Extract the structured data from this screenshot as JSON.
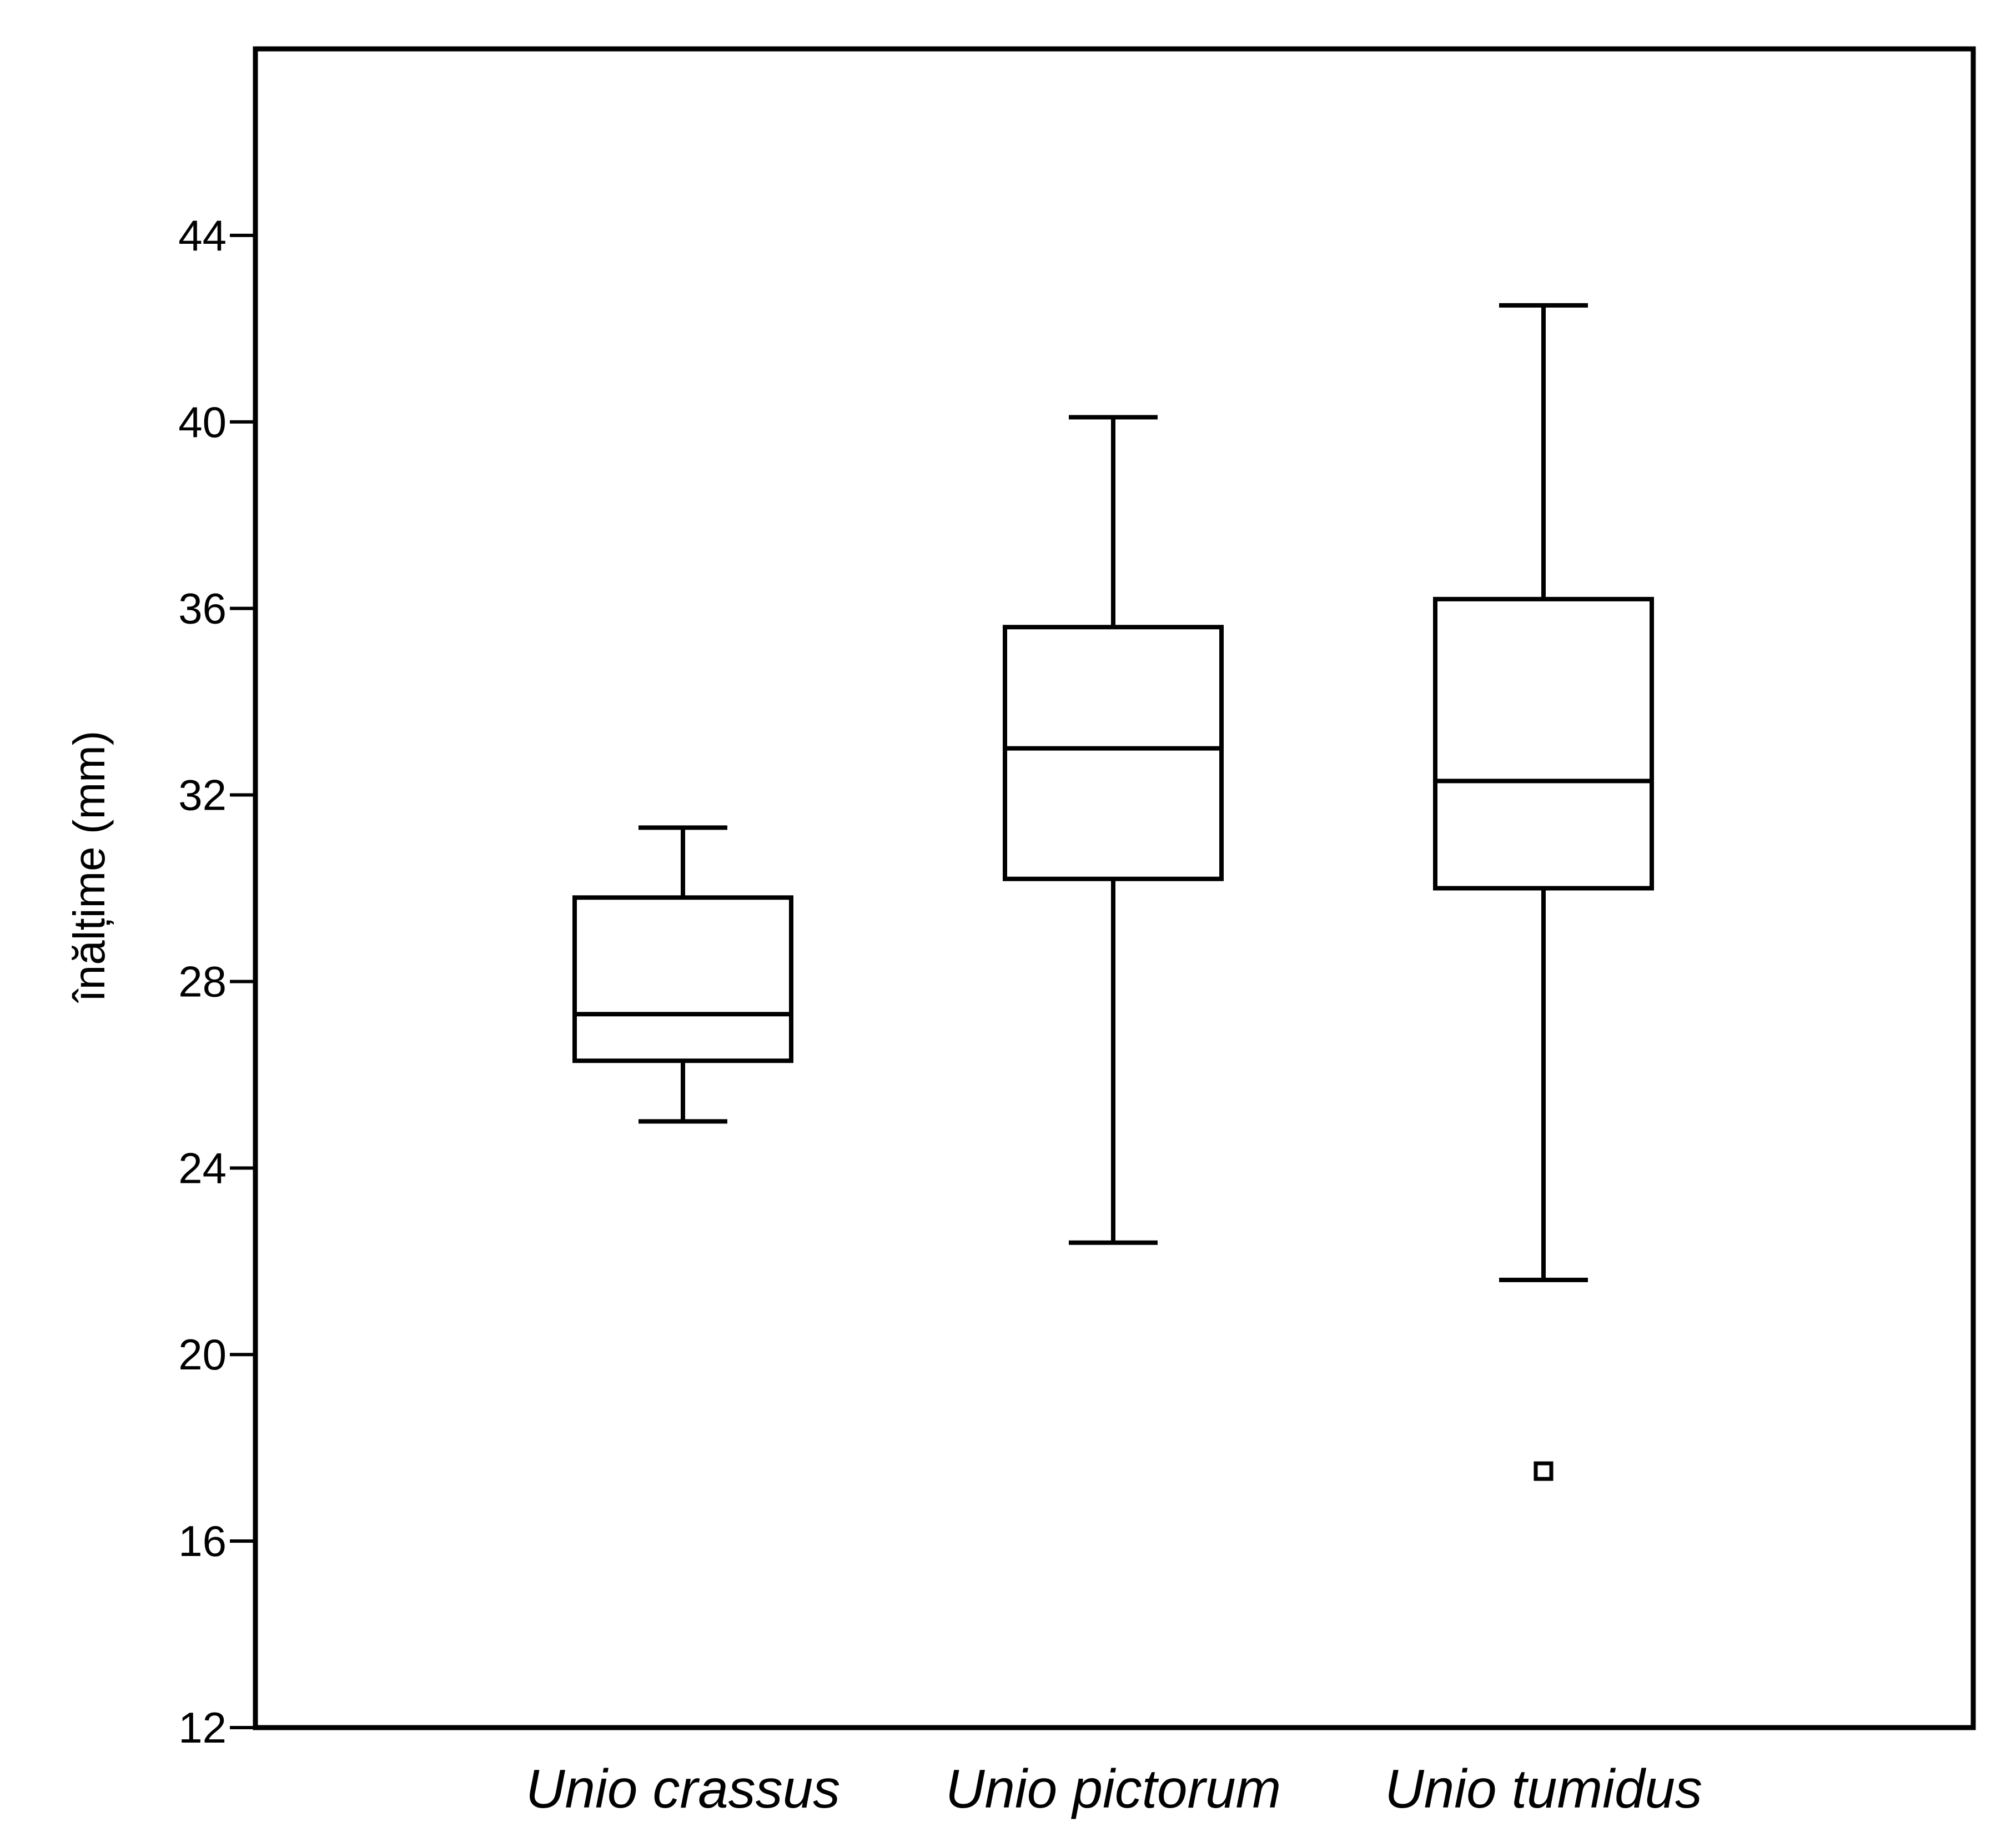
{
  "chart_data": {
    "type": "boxplot",
    "title": "",
    "xlabel": "",
    "ylabel": "înălțime (mm)",
    "ylim": [
      12,
      48
    ],
    "yticks": [
      12,
      16,
      20,
      24,
      28,
      32,
      36,
      40,
      44
    ],
    "ytick_labels": [
      "12",
      "16",
      "20",
      "24",
      "28",
      "32",
      "36",
      "40",
      "44"
    ],
    "categories": [
      "Unio crassus",
      "Unio pictorum",
      "Unio tumidus"
    ],
    "boxes": [
      {
        "category": "Unio crassus",
        "whisker_low": 25.0,
        "q1": 26.3,
        "median": 27.3,
        "q3": 29.8,
        "whisker_high": 31.3,
        "outliers": []
      },
      {
        "category": "Unio pictorum",
        "whisker_low": 22.4,
        "q1": 30.2,
        "median": 33.0,
        "q3": 35.6,
        "whisker_high": 40.1,
        "outliers": []
      },
      {
        "category": "Unio tumidus",
        "whisker_low": 21.6,
        "q1": 30.0,
        "median": 32.3,
        "q3": 36.2,
        "whisker_high": 42.5,
        "outliers": [
          17.5
        ]
      }
    ],
    "grid": false,
    "legend": "none",
    "colors": {
      "stroke": "#000000",
      "background": "#ffffff"
    }
  }
}
